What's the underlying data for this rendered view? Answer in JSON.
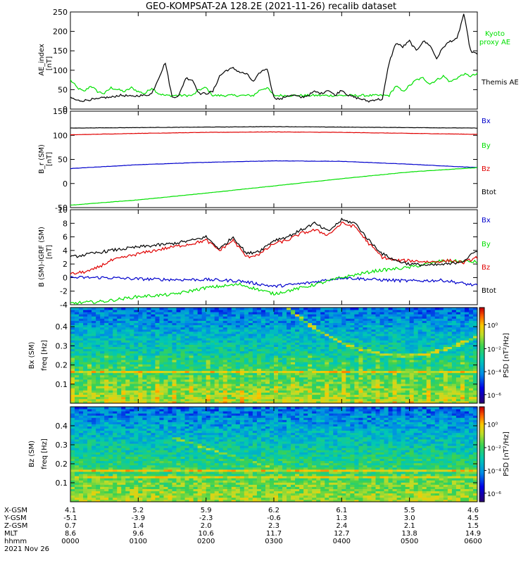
{
  "title": "GEO-KOMPSAT-2A 128.2E (2021-11-26) recalib dataset",
  "chart_data": [
    {
      "type": "line",
      "panel": "ae",
      "ylabel": "AE_index [nT]",
      "ylim": [
        0,
        250
      ],
      "yticks": [
        0,
        50,
        100,
        150,
        200,
        250
      ],
      "xlim": [
        0,
        6
      ],
      "series": [
        {
          "name": "Kyoto proxy AE",
          "color": "#00e000",
          "x": [
            0.0,
            0.1,
            0.2,
            0.3,
            0.4,
            0.5,
            0.6,
            0.7,
            0.8,
            0.9,
            1.0,
            1.1,
            1.2,
            1.3,
            1.4,
            1.5,
            1.6,
            1.7,
            1.8,
            1.9,
            2.0,
            2.1,
            2.2,
            2.3,
            2.4,
            2.5,
            2.6,
            2.7,
            2.8,
            2.9,
            3.0,
            3.1,
            3.2,
            3.3,
            3.4,
            3.5,
            3.6,
            3.7,
            3.8,
            3.9,
            4.0,
            4.1,
            4.2,
            4.3,
            4.4,
            4.5,
            4.6,
            4.7,
            4.8,
            4.9,
            5.0,
            5.1,
            5.2,
            5.3,
            5.4,
            5.5,
            5.6,
            5.7,
            5.8,
            5.9,
            6.0
          ],
          "y": [
            75,
            55,
            45,
            60,
            45,
            40,
            55,
            50,
            45,
            55,
            45,
            40,
            55,
            40,
            35,
            35,
            35,
            35,
            35,
            50,
            55,
            35,
            35,
            35,
            35,
            35,
            35,
            35,
            50,
            55,
            35,
            35,
            35,
            35,
            35,
            35,
            35,
            35,
            35,
            35,
            35,
            35,
            35,
            35,
            35,
            35,
            35,
            35,
            60,
            45,
            60,
            75,
            80,
            65,
            75,
            85,
            70,
            80,
            90,
            85,
            90
          ]
        },
        {
          "name": "Themis AE",
          "color": "#000000",
          "x": [
            0.0,
            0.1,
            0.2,
            0.3,
            0.4,
            0.5,
            0.6,
            0.7,
            0.8,
            0.9,
            1.0,
            1.1,
            1.2,
            1.3,
            1.4,
            1.5,
            1.6,
            1.7,
            1.8,
            1.9,
            2.0,
            2.1,
            2.2,
            2.3,
            2.4,
            2.5,
            2.6,
            2.7,
            2.8,
            2.9,
            3.0,
            3.1,
            3.2,
            3.3,
            3.4,
            3.5,
            3.6,
            3.7,
            3.8,
            3.9,
            4.0,
            4.1,
            4.2,
            4.3,
            4.4,
            4.5,
            4.6,
            4.7,
            4.8,
            4.9,
            5.0,
            5.1,
            5.2,
            5.3,
            5.4,
            5.5,
            5.6,
            5.7,
            5.8,
            5.9,
            6.0
          ],
          "y": [
            30,
            22,
            22,
            25,
            25,
            30,
            30,
            35,
            35,
            32,
            35,
            35,
            40,
            80,
            120,
            30,
            35,
            80,
            75,
            40,
            40,
            45,
            85,
            100,
            105,
            95,
            90,
            70,
            95,
            105,
            30,
            25,
            35,
            35,
            30,
            35,
            45,
            40,
            50,
            35,
            50,
            35,
            30,
            25,
            20,
            25,
            25,
            120,
            170,
            160,
            175,
            150,
            175,
            165,
            130,
            160,
            175,
            180,
            245,
            150,
            140
          ]
        }
      ],
      "legend": [
        "Kyoto proxy AE",
        "Themis AE"
      ],
      "legend_placement": "right"
    },
    {
      "type": "line",
      "panel": "bfield",
      "ylabel": "B_r (SM) [nT]",
      "ylim": [
        -50,
        150
      ],
      "yticks": [
        -50,
        0,
        50,
        100,
        150
      ],
      "xlim": [
        0,
        6
      ],
      "series": [
        {
          "name": "Bx",
          "color": "#0000cc",
          "x": [
            0,
            1,
            2,
            3,
            4,
            5,
            6
          ],
          "y": [
            31,
            39,
            44,
            47,
            46,
            40,
            33
          ]
        },
        {
          "name": "By",
          "color": "#00e000",
          "x": [
            0,
            1,
            2,
            3,
            4,
            5,
            6
          ],
          "y": [
            -45,
            -34,
            -20,
            -5,
            10,
            24,
            33
          ]
        },
        {
          "name": "Bz",
          "color": "#e00000",
          "x": [
            0,
            1,
            2,
            3,
            4,
            5,
            6
          ],
          "y": [
            101,
            104,
            106,
            107,
            106,
            104,
            102
          ]
        },
        {
          "name": "Btot",
          "color": "#000000",
          "x": [
            0,
            1,
            2,
            3,
            4,
            5,
            6
          ],
          "y": [
            115,
            116,
            117,
            118,
            117,
            116,
            115
          ]
        }
      ],
      "legend": [
        "Bx",
        "By",
        "Bz",
        "Btot"
      ],
      "legend_placement": "right"
    },
    {
      "type": "line",
      "panel": "residual",
      "ylabel": "B (SM)-IGRF (SM) [nT]",
      "ylim": [
        -4,
        10
      ],
      "yticks": [
        -4,
        -2,
        0,
        2,
        4,
        6,
        8,
        10
      ],
      "xlim": [
        0,
        6
      ],
      "series": [
        {
          "name": "Bx",
          "color": "#0000cc",
          "x": [
            0.0,
            0.5,
            1.0,
            1.5,
            2.0,
            2.5,
            3.0,
            3.5,
            4.0,
            4.5,
            5.0,
            5.5,
            6.0
          ],
          "y": [
            0,
            0,
            -0.2,
            -0.3,
            -0.3,
            -0.5,
            -1.3,
            -0.8,
            0,
            -0.3,
            -0.5,
            -0.4,
            -1.2
          ]
        },
        {
          "name": "By",
          "color": "#00e000",
          "x": [
            0.0,
            0.5,
            1.0,
            1.5,
            2.0,
            2.5,
            3.0,
            3.5,
            4.0,
            4.5,
            5.0,
            5.5,
            6.0
          ],
          "y": [
            -3.8,
            -3.5,
            -2.8,
            -2.5,
            -1.5,
            -1.0,
            -2.4,
            -1.3,
            0,
            1.0,
            1.5,
            2.5,
            2.3
          ]
        },
        {
          "name": "Bz",
          "color": "#e00000",
          "x": [
            0.0,
            0.3,
            0.6,
            1.0,
            1.5,
            1.8,
            2.0,
            2.2,
            2.4,
            2.6,
            2.8,
            3.0,
            3.2,
            3.4,
            3.6,
            3.8,
            4.0,
            4.2,
            4.4,
            4.6,
            4.8,
            5.0,
            5.3,
            5.6,
            5.8,
            6.0
          ],
          "y": [
            0.5,
            1.0,
            2.5,
            3.5,
            4.5,
            5.0,
            5.5,
            4.0,
            5.5,
            3.0,
            3.5,
            5.0,
            5.5,
            6.5,
            7.0,
            6.3,
            8.0,
            7.5,
            5.0,
            3.0,
            2.5,
            2.5,
            2.3,
            2.5,
            2.2,
            3.0
          ]
        },
        {
          "name": "Btot",
          "color": "#000000",
          "x": [
            0.0,
            0.3,
            0.6,
            1.0,
            1.5,
            1.8,
            2.0,
            2.2,
            2.4,
            2.6,
            2.8,
            3.0,
            3.2,
            3.4,
            3.6,
            3.8,
            4.0,
            4.2,
            4.4,
            4.6,
            4.8,
            5.0,
            5.3,
            5.6,
            5.8,
            6.0
          ],
          "y": [
            3.0,
            3.5,
            4.0,
            4.5,
            5.0,
            5.5,
            6.0,
            4.2,
            6.0,
            3.5,
            4.0,
            5.5,
            6.0,
            7.0,
            8.0,
            6.8,
            8.5,
            8.0,
            5.5,
            3.5,
            2.5,
            2.0,
            1.8,
            2.0,
            2.5,
            4.0
          ]
        }
      ],
      "legend": [
        "Bx",
        "By",
        "Bz",
        "Btot"
      ],
      "legend_placement": "right"
    },
    {
      "type": "heatmap",
      "panel": "spec_bx",
      "ylabel": "Bx (SM) freq [Hz]",
      "ylim": [
        0,
        0.5
      ],
      "yticks": [
        0.1,
        0.2,
        0.3,
        0.4
      ],
      "colorbar_label": "PSD [nT²/Hz]",
      "colorbar_ticks": [
        "10⁰",
        "10⁻²",
        "10⁻⁴",
        "10⁻⁶"
      ],
      "narrowband_freq": 0.167
    },
    {
      "type": "heatmap",
      "panel": "spec_bz",
      "ylabel": "Bz (SM) freq [Hz]",
      "ylim": [
        0,
        0.5
      ],
      "yticks": [
        0.1,
        0.2,
        0.3,
        0.4
      ],
      "colorbar_label": "PSD [nT²/Hz]",
      "colorbar_ticks": [
        "10⁰",
        "10⁻²",
        "10⁻⁴",
        "10⁻⁶"
      ],
      "narrowband_freq": 0.167
    }
  ],
  "ephemeris": {
    "labels": [
      "X-GSM",
      "Y-GSM",
      "Z-GSM",
      "MLT",
      "hhmm"
    ],
    "date": "2021 Nov 26",
    "columns": [
      [
        "4.1",
        "-5.1",
        "0.7",
        "8.6",
        "0000"
      ],
      [
        "5.2",
        "-3.9",
        "1.4",
        "9.6",
        "0100"
      ],
      [
        "5.9",
        "-2.3",
        "2.0",
        "10.6",
        "0200"
      ],
      [
        "6.2",
        "-0.6",
        "2.3",
        "11.7",
        "0300"
      ],
      [
        "6.1",
        "1.3",
        "2.4",
        "12.7",
        "0400"
      ],
      [
        "5.5",
        "3.0",
        "2.1",
        "13.8",
        "0500"
      ],
      [
        "4.6",
        "4.5",
        "1.5",
        "14.9",
        "0600"
      ]
    ]
  },
  "labels": {
    "ae_y": "AE_index",
    "ae_unit": "[nT]",
    "ae_kyoto_1": "Kyoto",
    "ae_kyoto_2": "proxy AE",
    "ae_themis": "Themis AE",
    "b_y": "B_r (SM)",
    "b_unit": "[nT]",
    "r_y": "B (SM)-IGRF (SM)",
    "r_unit": "[nT]",
    "bx_spec": "Bx (SM)",
    "bz_spec": "Bz (SM)",
    "freq": "freq [Hz]",
    "psd": "PSD [nT²/Hz]"
  }
}
